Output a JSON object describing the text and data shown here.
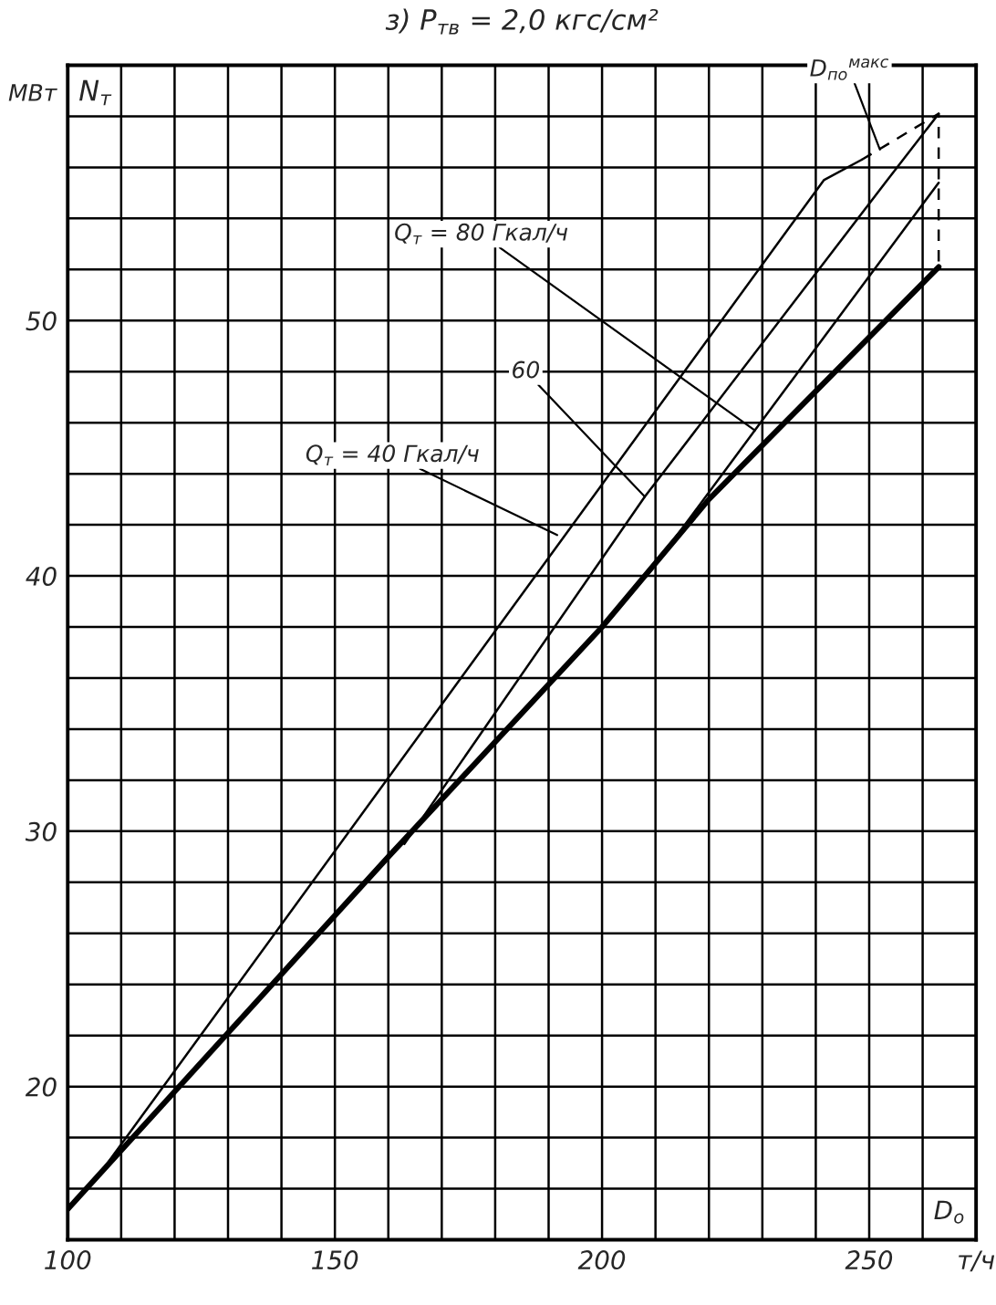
{
  "chart_data": {
    "type": "line",
    "title": "з) P$_{тв}$ = 2,0 кгс/см²",
    "xlabel": "D$_{о}$",
    "ylabel": "N$_{т}$",
    "xlim": [
      100,
      270
    ],
    "ylim": [
      14,
      60
    ],
    "xticks": [
      100,
      {
        "value": 110,
        "label": null
      },
      {
        "value": 120,
        "label": null
      },
      {
        "value": 130,
        "label": null
      },
      {
        "value": 140,
        "label": null
      },
      150,
      {
        "value": 160,
        "label": null
      },
      {
        "value": 170,
        "label": null
      },
      {
        "value": 180,
        "label": null
      },
      {
        "value": 190,
        "label": null
      },
      200,
      {
        "value": 210,
        "label": null
      },
      {
        "value": 220,
        "label": null
      },
      {
        "value": 230,
        "label": null
      },
      {
        "value": 240,
        "label": null
      },
      250,
      {
        "value": 260,
        "label": null
      },
      {
        "value": 270,
        "label": "т/ч"
      }
    ],
    "yticks": [
      {
        "value": 14,
        "label": null
      },
      {
        "value": 16,
        "label": null
      },
      {
        "value": 18,
        "label": null
      },
      20,
      {
        "value": 22,
        "label": null
      },
      {
        "value": 24,
        "label": null
      },
      {
        "value": 26,
        "label": null
      },
      {
        "value": 28,
        "label": null
      },
      30,
      {
        "value": 32,
        "label": null
      },
      {
        "value": 34,
        "label": null
      },
      {
        "value": 36,
        "label": null
      },
      {
        "value": 38,
        "label": null
      },
      40,
      {
        "value": 42,
        "label": null
      },
      {
        "value": 44,
        "label": null
      },
      {
        "value": 46,
        "label": null
      },
      {
        "value": 48,
        "label": null
      },
      50,
      {
        "value": 52,
        "label": null
      },
      {
        "value": 54,
        "label": null
      },
      {
        "value": 56,
        "label": null
      },
      {
        "value": 58,
        "label": null
      },
      {
        "value": 60,
        "label": null
      }
    ],
    "grid": true,
    "series": [
      {
        "color": "#000000",
        "x": [
          100,
          160,
          200,
          220,
          263
        ],
        "values": [
          15.2,
          29,
          38,
          43,
          52.1
        ]
      },
      {
        "color": "#000000",
        "x": [
          100,
          105,
          241.5,
          248.6
        ],
        "values": [
          15.2,
          16.3,
          55.5,
          56.3
        ]
      },
      {
        "color": "#000000",
        "x": [
          163,
          208,
          253,
          263
        ],
        "values": [
          29.5,
          43.1,
          55.4,
          58.1
        ]
      },
      {
        "color": "#000000",
        "x": [
          213,
          228.6,
          263
        ],
        "values": [
          41.3,
          45.7,
          55.4
        ]
      },
      {
        "color": "#000000",
        "line_style": "dashed",
        "x": [
          248.6,
          263,
          263
        ],
        "values": [
          56.3,
          58.1,
          52.1
        ]
      }
    ],
    "annotations": [
      {
        "text": "Q$_{т}$ = 40 Гкал/ч",
        "x": 191.6,
        "y": 41.6
      },
      {
        "text": "60",
        "x": 208,
        "y": 43.1
      },
      {
        "text": "Q$_{т}$ = 80 Гкал/ч",
        "x": 228.6,
        "y": 45.7
      },
      {
        "text": "D$_{по}$$^{макс}$",
        "x": 252,
        "y": 56.7
      },
      "МВт"
    ]
  }
}
